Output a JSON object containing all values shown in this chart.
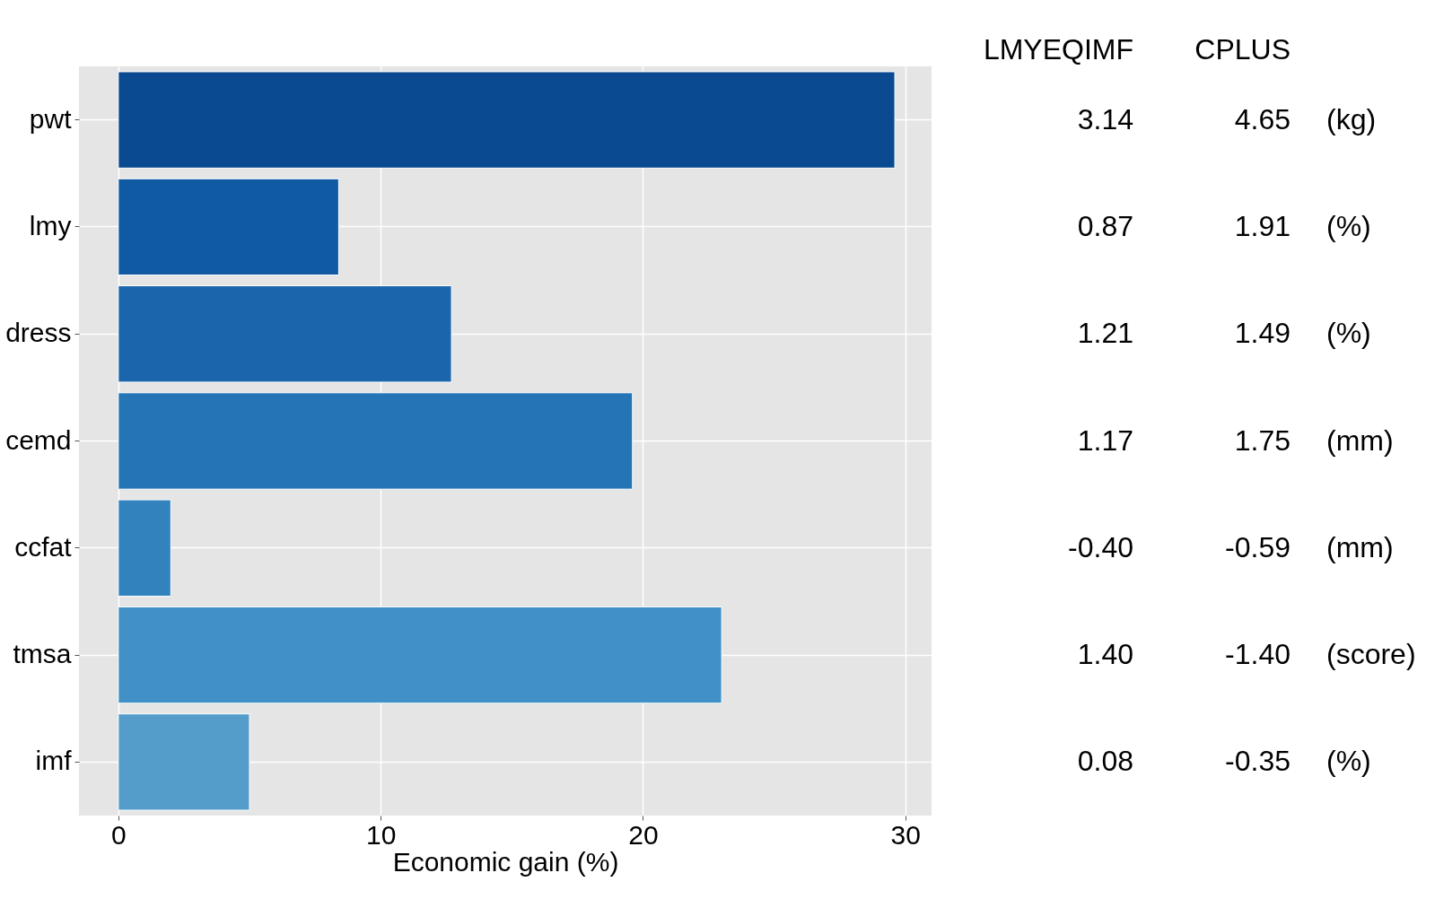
{
  "chart_data": {
    "type": "bar",
    "orientation": "horizontal",
    "xlabel": "Economic gain (%)",
    "categories": [
      "pwt",
      "lmy",
      "dress",
      "cemd",
      "ccfat",
      "tmsa",
      "imf"
    ],
    "values": [
      29.6,
      8.4,
      12.7,
      19.6,
      2.0,
      23.0,
      5.0
    ],
    "colors": [
      "#0a4a90",
      "#1059a3",
      "#1a65ac",
      "#2574b6",
      "#3182bd",
      "#4191c6",
      "#549dca"
    ],
    "xlim": [
      -1.5,
      31
    ],
    "xticks": [
      0,
      10,
      20,
      30
    ],
    "grid": true,
    "annotations": [
      "LMYEQIMF",
      "CPLUS",
      "3.14",
      "4.65",
      "(kg)",
      "0.87",
      "1.91",
      "(%)",
      "1.21",
      "1.49",
      "(%)",
      "1.17",
      "1.75",
      "(mm)",
      "-0.40",
      "-0.59",
      "(mm)",
      "1.40",
      "-1.40",
      "(score)",
      "0.08",
      "-0.35",
      "(%)"
    ]
  }
}
